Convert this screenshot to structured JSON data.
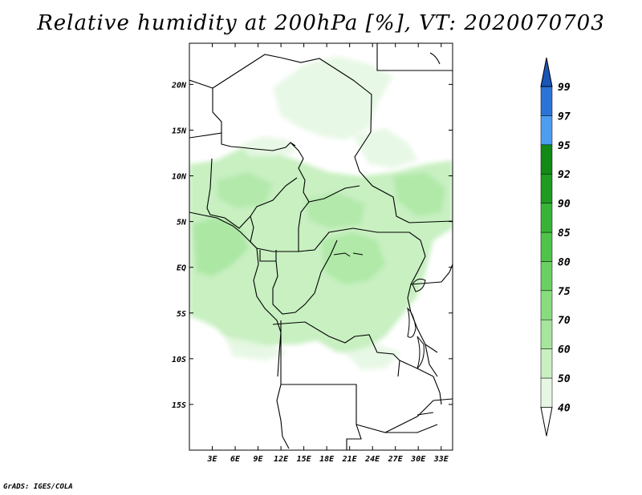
{
  "title": "Relative humidity at 200hPa [%], VT: 2020070703",
  "credit": "GrADS: IGES/COLA",
  "chart_data": {
    "type": "heatmap",
    "variable": "Relative humidity",
    "level": "200hPa",
    "units": "%",
    "valid_time": "2020070703",
    "lon_range": [
      0,
      34.5
    ],
    "lat_range": [
      -20,
      24.5
    ],
    "x_ticks": [
      {
        "lon": 3,
        "label": "3E"
      },
      {
        "lon": 6,
        "label": "6E"
      },
      {
        "lon": 9,
        "label": "9E"
      },
      {
        "lon": 12,
        "label": "12E"
      },
      {
        "lon": 15,
        "label": "15E"
      },
      {
        "lon": 18,
        "label": "18E"
      },
      {
        "lon": 21,
        "label": "21E"
      },
      {
        "lon": 24,
        "label": "24E"
      },
      {
        "lon": 27,
        "label": "27E"
      },
      {
        "lon": 30,
        "label": "30E"
      },
      {
        "lon": 33,
        "label": "33E"
      }
    ],
    "y_ticks": [
      {
        "lat": 20,
        "label": "20N"
      },
      {
        "lat": 15,
        "label": "15N"
      },
      {
        "lat": 10,
        "label": "10N"
      },
      {
        "lat": 5,
        "label": "5N"
      },
      {
        "lat": 0,
        "label": "EQ"
      },
      {
        "lat": -5,
        "label": "5S"
      },
      {
        "lat": -10,
        "label": "10S"
      },
      {
        "lat": -15,
        "label": "15S"
      }
    ],
    "colorbar": {
      "levels": [
        "40",
        "50",
        "60",
        "70",
        "75",
        "80",
        "85",
        "90",
        "92",
        "95",
        "97",
        "99"
      ],
      "colors": [
        "#ffffff",
        "#e6f7e3",
        "#c8f0c1",
        "#a5e59c",
        "#88dc7e",
        "#6ad062",
        "#4fc34a",
        "#37b436",
        "#1f9b21",
        "#128a15",
        "#4c9df0",
        "#2a74d8",
        "#1a55b8"
      ]
    }
  }
}
